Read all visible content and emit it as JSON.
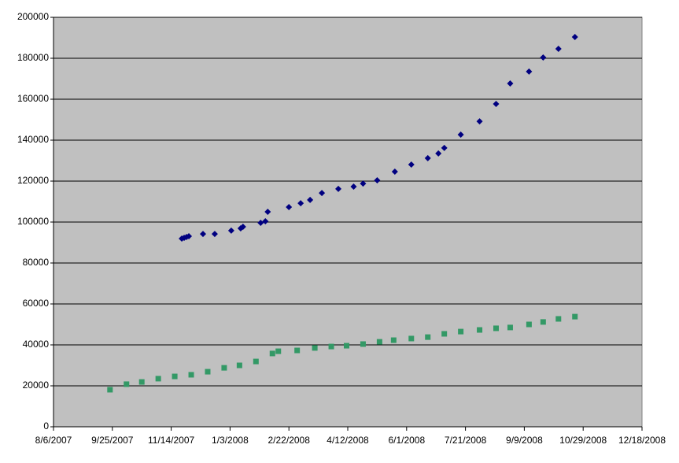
{
  "chart_data": {
    "type": "scatter",
    "xlim": [
      "8/6/2007",
      "12/18/2008"
    ],
    "xticks": [
      "8/6/2007",
      "9/25/2007",
      "11/14/2007",
      "1/3/2008",
      "2/22/2008",
      "4/12/2008",
      "6/1/2008",
      "7/21/2008",
      "9/9/2008",
      "10/29/2008",
      "12/18/2008"
    ],
    "ylim": [
      0,
      200000
    ],
    "yticks": [
      0,
      20000,
      40000,
      60000,
      80000,
      100000,
      120000,
      140000,
      160000,
      180000,
      200000
    ],
    "grid": true,
    "plot_background": "#c0c0c0",
    "series": [
      {
        "color": "#000080",
        "marker": "diamond",
        "x": [
          "11/23/2007",
          "11/25/2007",
          "11/27/2007",
          "11/29/2007",
          "12/11/2007",
          "12/21/2007",
          "1/4/2008",
          "1/12/2008",
          "1/14/2008",
          "1/29/2008",
          "2/2/2008",
          "2/4/2008",
          "2/22/2008",
          "3/3/2008",
          "3/11/2008",
          "3/21/2008",
          "4/4/2008",
          "4/17/2008",
          "4/25/2008",
          "5/7/2008",
          "5/22/2008",
          "6/5/2008",
          "6/19/2008",
          "6/28/2008",
          "7/3/2008",
          "7/17/2008",
          "8/2/2008",
          "8/16/2008",
          "8/28/2008",
          "9/13/2008",
          "9/25/2008",
          "10/8/2008",
          "10/22/2008"
        ],
        "values": [
          91900,
          92300,
          92700,
          93100,
          94200,
          94200,
          95800,
          96900,
          97700,
          99600,
          100400,
          105000,
          107300,
          109200,
          110800,
          114200,
          116200,
          117300,
          118800,
          120400,
          124600,
          128100,
          131200,
          133500,
          136200,
          142700,
          149200,
          157700,
          167700,
          173500,
          180400,
          184600,
          190400
        ]
      },
      {
        "color": "#339966",
        "marker": "square",
        "x": [
          "9/23/2007",
          "10/7/2007",
          "10/20/2007",
          "11/3/2007",
          "11/17/2007",
          "12/1/2007",
          "12/15/2007",
          "12/29/2007",
          "1/11/2008",
          "1/25/2008",
          "2/8/2008",
          "2/13/2008",
          "2/29/2008",
          "3/15/2008",
          "3/29/2008",
          "4/11/2008",
          "4/25/2008",
          "5/9/2008",
          "5/21/2008",
          "6/5/2008",
          "6/19/2008",
          "7/3/2008",
          "7/17/2008",
          "8/2/2008",
          "8/16/2008",
          "8/28/2008",
          "9/13/2008",
          "9/25/2008",
          "10/8/2008",
          "10/22/2008"
        ],
        "values": [
          18100,
          20800,
          21900,
          23500,
          24600,
          25400,
          26900,
          28800,
          30000,
          31900,
          35800,
          36900,
          37300,
          38500,
          39200,
          39600,
          40400,
          41500,
          42300,
          43100,
          43800,
          45400,
          46500,
          47300,
          48100,
          48500,
          50000,
          51200,
          52700,
          53800
        ]
      }
    ]
  }
}
